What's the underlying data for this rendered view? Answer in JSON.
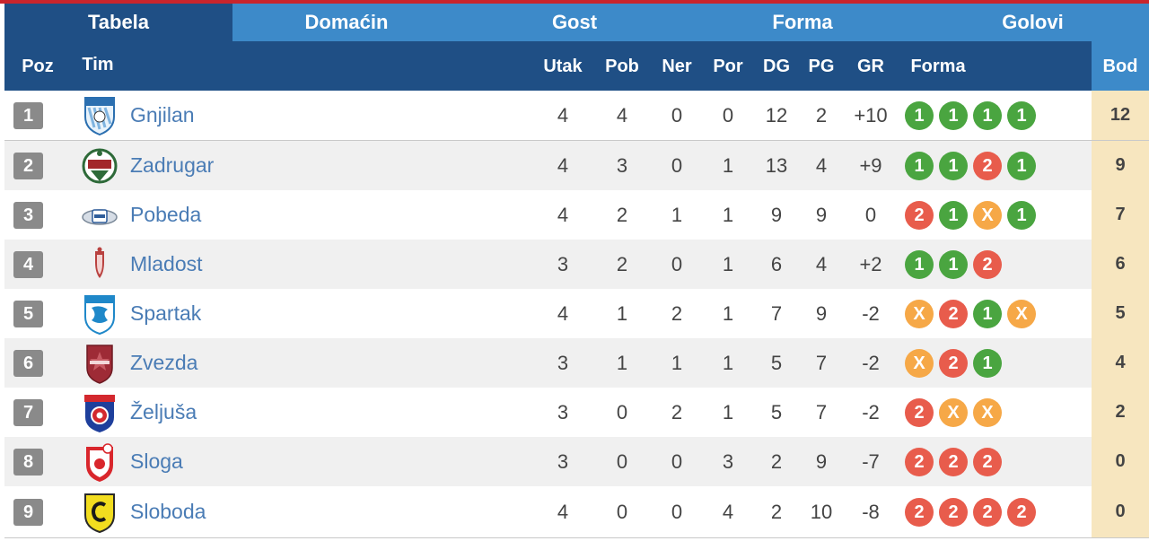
{
  "tabs": [
    {
      "label": "Tabela",
      "active": true
    },
    {
      "label": "Domaćin",
      "active": false
    },
    {
      "label": "Gost",
      "active": false
    },
    {
      "label": "Forma",
      "active": false
    },
    {
      "label": "Golovi",
      "active": false
    }
  ],
  "headers": {
    "poz": "Poz",
    "tim": "Tim",
    "utak": "Utak",
    "pob": "Pob",
    "ner": "Ner",
    "por": "Por",
    "dg": "DG",
    "pg": "PG",
    "gr": "GR",
    "forma": "Forma",
    "bod": "Bod"
  },
  "colors": {
    "win": "#4aa540",
    "loss": "#e85c4c",
    "draw": "#f6a847",
    "header_dark": "#1f4f85",
    "header_light": "#3d8ac9",
    "points_bg": "#f7e6bf"
  },
  "rows": [
    {
      "poz": "1",
      "team": "Gnjilan",
      "crest": "gnjilan-crest",
      "utak": "4",
      "pob": "4",
      "ner": "0",
      "por": "0",
      "dg": "12",
      "pg": "2",
      "gr": "+10",
      "form": [
        "1",
        "1",
        "1",
        "1"
      ],
      "bod": "12"
    },
    {
      "poz": "2",
      "team": "Zadrugar",
      "crest": "zadrugar-crest",
      "utak": "4",
      "pob": "3",
      "ner": "0",
      "por": "1",
      "dg": "13",
      "pg": "4",
      "gr": "+9",
      "form": [
        "1",
        "1",
        "2",
        "1"
      ],
      "bod": "9"
    },
    {
      "poz": "3",
      "team": "Pobeda",
      "crest": "pobeda-crest",
      "utak": "4",
      "pob": "2",
      "ner": "1",
      "por": "1",
      "dg": "9",
      "pg": "9",
      "gr": "0",
      "form": [
        "2",
        "1",
        "X",
        "1"
      ],
      "bod": "7"
    },
    {
      "poz": "4",
      "team": "Mladost",
      "crest": "mladost-crest",
      "utak": "3",
      "pob": "2",
      "ner": "0",
      "por": "1",
      "dg": "6",
      "pg": "4",
      "gr": "+2",
      "form": [
        "1",
        "1",
        "2"
      ],
      "bod": "6"
    },
    {
      "poz": "5",
      "team": "Spartak",
      "crest": "spartak-crest",
      "utak": "4",
      "pob": "1",
      "ner": "2",
      "por": "1",
      "dg": "7",
      "pg": "9",
      "gr": "-2",
      "form": [
        "X",
        "2",
        "1",
        "X"
      ],
      "bod": "5"
    },
    {
      "poz": "6",
      "team": "Zvezda",
      "crest": "zvezda-crest",
      "utak": "3",
      "pob": "1",
      "ner": "1",
      "por": "1",
      "dg": "5",
      "pg": "7",
      "gr": "-2",
      "form": [
        "X",
        "2",
        "1"
      ],
      "bod": "4"
    },
    {
      "poz": "7",
      "team": "Željuša",
      "crest": "zeljusa-crest",
      "utak": "3",
      "pob": "0",
      "ner": "2",
      "por": "1",
      "dg": "5",
      "pg": "7",
      "gr": "-2",
      "form": [
        "2",
        "X",
        "X"
      ],
      "bod": "2"
    },
    {
      "poz": "8",
      "team": "Sloga",
      "crest": "sloga-crest",
      "utak": "3",
      "pob": "0",
      "ner": "0",
      "por": "3",
      "dg": "2",
      "pg": "9",
      "gr": "-7",
      "form": [
        "2",
        "2",
        "2"
      ],
      "bod": "0"
    },
    {
      "poz": "9",
      "team": "Sloboda",
      "crest": "sloboda-crest",
      "utak": "4",
      "pob": "0",
      "ner": "0",
      "por": "4",
      "dg": "2",
      "pg": "10",
      "gr": "-8",
      "form": [
        "2",
        "2",
        "2",
        "2"
      ],
      "bod": "0"
    }
  ]
}
